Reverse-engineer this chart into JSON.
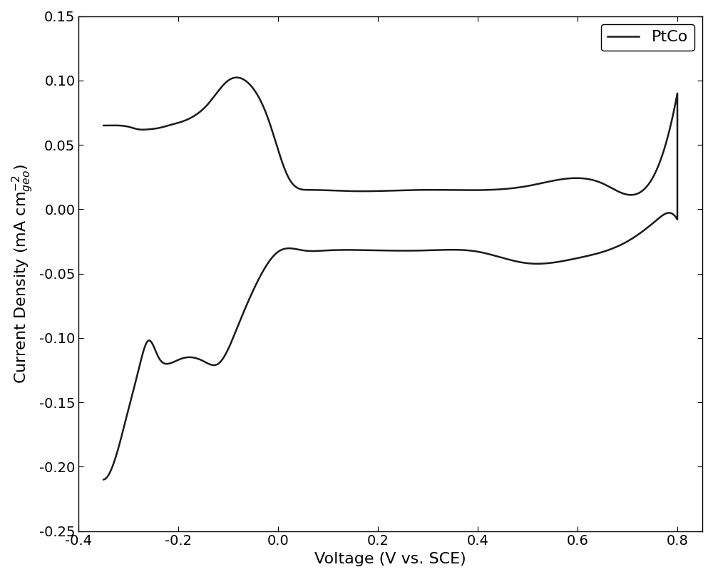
{
  "title": "",
  "xlabel": "Voltage (V vs. SCE)",
  "ylabel_raw": "Current Density (mA cm$^{-2}_{geo}$)",
  "xlim": [
    -0.4,
    0.85
  ],
  "ylim": [
    -0.25,
    0.15
  ],
  "xticks": [
    -0.4,
    -0.2,
    0.0,
    0.2,
    0.4,
    0.6,
    0.8
  ],
  "yticks": [
    -0.25,
    -0.2,
    -0.15,
    -0.1,
    -0.05,
    0.0,
    0.05,
    0.1,
    0.15
  ],
  "line_color": "#1a1a1a",
  "line_width": 1.8,
  "legend_label": "PtCo",
  "background_color": "#ffffff",
  "font_size": 16,
  "tick_font_size": 14
}
